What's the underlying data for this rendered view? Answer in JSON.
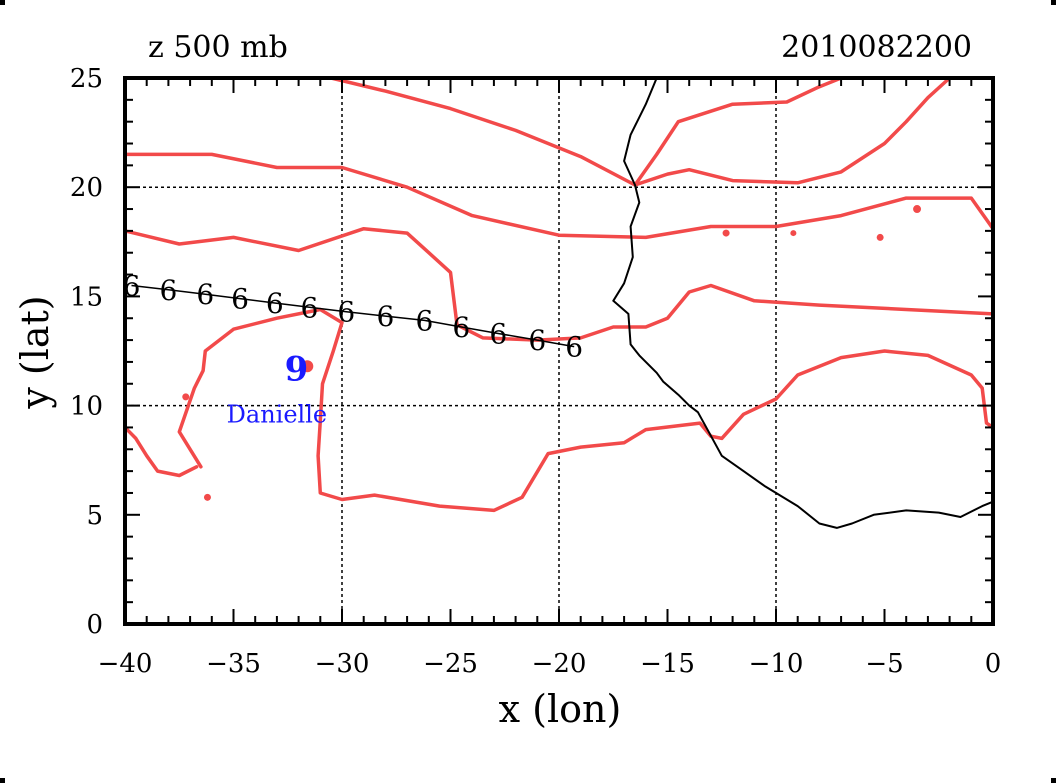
{
  "chart_data": {
    "type": "line",
    "title_left": "z 500 mb",
    "title_right": "2010082200",
    "xlabel": "x (lon)",
    "ylabel": "y (lat)",
    "xlim": [
      -40,
      0
    ],
    "ylim": [
      0,
      25
    ],
    "xticks": [
      -40,
      -35,
      -30,
      -25,
      -20,
      -15,
      -10,
      -5,
      0
    ],
    "yticks": [
      0,
      5,
      10,
      15,
      20,
      25
    ],
    "xtick_labels": [
      "−40",
      "−35",
      "−30",
      "−25",
      "−20",
      "−15",
      "−10",
      "−5",
      "0"
    ],
    "ytick_labels": [
      "0",
      "5",
      "10",
      "15",
      "20",
      "25"
    ],
    "grid_x": [
      -30,
      -20,
      -10
    ],
    "grid_y": [
      10,
      20
    ],
    "colors": {
      "contour": "#f24a4a",
      "coast": "#000000",
      "track": "#000000",
      "storm": "#1a1aff",
      "grid": "#000000"
    },
    "contours": [
      [
        [
          -30.5,
          25
        ],
        [
          -28,
          24.4
        ],
        [
          -25,
          23.6
        ],
        [
          -22,
          22.6
        ],
        [
          -19,
          21.4
        ],
        [
          -16.5,
          20.1
        ],
        [
          -15,
          20.6
        ],
        [
          -14,
          20.8
        ],
        [
          -12,
          20.3
        ],
        [
          -9,
          20.2
        ],
        [
          -7,
          20.7
        ],
        [
          -5,
          22
        ],
        [
          -4,
          23
        ],
        [
          -3,
          24.1
        ],
        [
          -2,
          25
        ]
      ],
      [
        [
          -16.5,
          20.1
        ],
        [
          -15.5,
          21.5
        ],
        [
          -14.5,
          23
        ],
        [
          -12,
          23.8
        ],
        [
          -9.5,
          23.9
        ],
        [
          -8,
          24.6
        ],
        [
          -7,
          25
        ]
      ],
      [
        [
          -40,
          21.5
        ],
        [
          -36,
          21.5
        ],
        [
          -33,
          20.9
        ],
        [
          -30,
          20.9
        ],
        [
          -27,
          20
        ],
        [
          -24,
          18.7
        ],
        [
          -20,
          17.8
        ],
        [
          -16,
          17.7
        ],
        [
          -13,
          18.2
        ],
        [
          -10,
          18.2
        ],
        [
          -7,
          18.7
        ],
        [
          -4,
          19.5
        ],
        [
          -1,
          19.5
        ],
        [
          0,
          18.1
        ]
      ],
      [
        [
          -40,
          18
        ],
        [
          -37.5,
          17.4
        ],
        [
          -35,
          17.7
        ],
        [
          -32,
          17.1
        ],
        [
          -29,
          18.1
        ],
        [
          -27,
          17.9
        ],
        [
          -26,
          17
        ],
        [
          -25,
          16.1
        ],
        [
          -24.7,
          13.7
        ],
        [
          -23.5,
          13.1
        ],
        [
          -21,
          13
        ],
        [
          -19,
          13.1
        ],
        [
          -17.5,
          13.6
        ],
        [
          -16,
          13.6
        ],
        [
          -15,
          14
        ],
        [
          -14,
          15.2
        ],
        [
          -13,
          15.5
        ],
        [
          -11,
          14.8
        ],
        [
          -8,
          14.6
        ],
        [
          -4,
          14.4
        ],
        [
          0,
          14.2
        ]
      ],
      [
        [
          -36.5,
          7.2
        ],
        [
          -37.5,
          8.8
        ],
        [
          -36.8,
          10.8
        ],
        [
          -36.4,
          11.6
        ],
        [
          -36.3,
          12.5
        ],
        [
          -35,
          13.5
        ],
        [
          -33,
          14
        ],
        [
          -31,
          14.4
        ],
        [
          -30,
          13.8
        ],
        [
          -30.4,
          12.5
        ],
        [
          -30.9,
          11
        ],
        [
          -31,
          9.3
        ],
        [
          -31.1,
          7.7
        ],
        [
          -31,
          6
        ],
        [
          -30,
          5.7
        ],
        [
          -28.5,
          5.9
        ],
        [
          -25.5,
          5.4
        ],
        [
          -23,
          5.2
        ],
        [
          -21.7,
          5.8
        ],
        [
          -20.5,
          7.8
        ],
        [
          -19,
          8.1
        ],
        [
          -17,
          8.3
        ],
        [
          -16,
          8.9
        ],
        [
          -13.5,
          9.2
        ],
        [
          -13,
          8.6
        ],
        [
          -12.5,
          8.5
        ],
        [
          -11.5,
          9.6
        ],
        [
          -10,
          10.3
        ],
        [
          -9,
          11.4
        ],
        [
          -7,
          12.2
        ],
        [
          -5,
          12.5
        ],
        [
          -3,
          12.3
        ],
        [
          -1,
          11.4
        ],
        [
          -0.5,
          10.8
        ],
        [
          -0.3,
          9.2
        ],
        [
          0,
          9
        ]
      ],
      [
        [
          -40,
          9
        ],
        [
          -39.5,
          8.5
        ],
        [
          -39,
          7.7
        ],
        [
          -38.5,
          7
        ],
        [
          -37.5,
          6.8
        ],
        [
          -36.7,
          7.2
        ]
      ]
    ],
    "blobs": [
      {
        "x": -37.2,
        "y": 10.4,
        "r": 3.5
      },
      {
        "x": -36.2,
        "y": 5.8,
        "r": 3.5
      },
      {
        "x": -31.6,
        "y": 11.8,
        "r": 6
      },
      {
        "x": -12.3,
        "y": 17.9,
        "r": 3.5
      },
      {
        "x": -9.2,
        "y": 17.9,
        "r": 3
      },
      {
        "x": -5.2,
        "y": 17.7,
        "r": 3.5
      },
      {
        "x": -3.5,
        "y": 19,
        "r": 4
      }
    ],
    "coastline": [
      [
        -15.5,
        25
      ],
      [
        -16,
        23.8
      ],
      [
        -16.7,
        22.4
      ],
      [
        -17,
        21.2
      ],
      [
        -16.5,
        20.1
      ],
      [
        -16.3,
        19.3
      ],
      [
        -16.7,
        18.2
      ],
      [
        -16.6,
        16.8
      ],
      [
        -17,
        15.6
      ],
      [
        -17.5,
        14.8
      ],
      [
        -16.8,
        14.2
      ],
      [
        -16.7,
        12.8
      ],
      [
        -16.3,
        12.3
      ],
      [
        -15.5,
        11.5
      ],
      [
        -15.2,
        11.1
      ],
      [
        -14.5,
        10.5
      ],
      [
        -14,
        10
      ],
      [
        -13.6,
        9.7
      ],
      [
        -13.1,
        8.8
      ],
      [
        -12.5,
        7.7
      ],
      [
        -11.5,
        7
      ],
      [
        -10.5,
        6.3
      ],
      [
        -9,
        5.4
      ],
      [
        -8,
        4.6
      ],
      [
        -7.2,
        4.4
      ],
      [
        -6.5,
        4.6
      ],
      [
        -5.5,
        5
      ],
      [
        -4,
        5.2
      ],
      [
        -2.5,
        5.1
      ],
      [
        -1.5,
        4.9
      ],
      [
        -0.5,
        5.4
      ],
      [
        0,
        5.6
      ]
    ],
    "track": {
      "symbol": "6",
      "points": [
        [
          -39.7,
          15.5
        ],
        [
          -38,
          15.3
        ],
        [
          -36.3,
          15.1
        ],
        [
          -34.7,
          14.9
        ],
        [
          -33.1,
          14.7
        ],
        [
          -31.5,
          14.5
        ],
        [
          -29.8,
          14.3
        ],
        [
          -28,
          14.1
        ],
        [
          -26.2,
          13.9
        ],
        [
          -24.5,
          13.6
        ],
        [
          -22.8,
          13.3
        ],
        [
          -21,
          13
        ],
        [
          -19.3,
          12.7
        ]
      ]
    },
    "storm": {
      "symbol": "9",
      "name": "Danielle",
      "x": -32.1,
      "y": 11.7,
      "label_x": -33,
      "label_y": 9.6
    }
  }
}
